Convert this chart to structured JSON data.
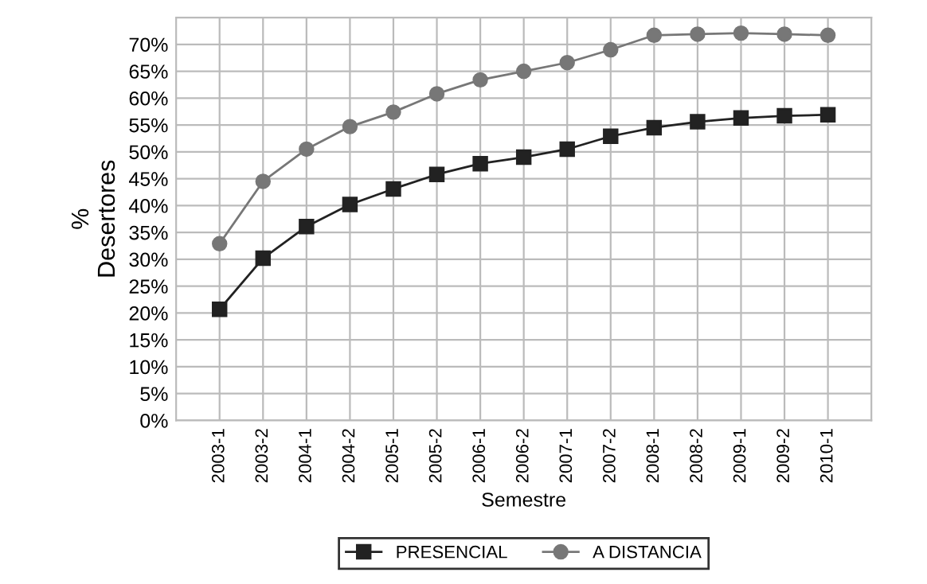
{
  "chart_data": {
    "type": "line",
    "xlabel": "Semestre",
    "ylabel": "%\nDesertores",
    "categories": [
      "2003-1",
      "2003-2",
      "2004-1",
      "2004-2",
      "2005-1",
      "2005-2",
      "2006-1",
      "2006-2",
      "2007-1",
      "2007-2",
      "2008-1",
      "2008-2",
      "2009-1",
      "2009-2",
      "2010-1"
    ],
    "series": [
      {
        "name": "PRESENCIAL",
        "color": "#222222",
        "marker": "square",
        "values": [
          20.7,
          30.2,
          36.1,
          40.2,
          43.1,
          45.8,
          47.8,
          49.0,
          50.5,
          52.9,
          54.5,
          55.6,
          56.3,
          56.7,
          56.9
        ]
      },
      {
        "name": "A DISTANCIA",
        "color": "#777777",
        "marker": "circle",
        "values": [
          32.9,
          44.5,
          50.5,
          54.7,
          57.4,
          60.8,
          63.4,
          65.0,
          66.6,
          69.0,
          71.7,
          71.9,
          72.1,
          71.9,
          71.7
        ]
      }
    ],
    "ylim": [
      0,
      75
    ],
    "yticks": [
      {
        "value": 0,
        "label": "0%"
      },
      {
        "value": 5,
        "label": "5%"
      },
      {
        "value": 10,
        "label": "10%"
      },
      {
        "value": 15,
        "label": "15%"
      },
      {
        "value": 20,
        "label": "20%"
      },
      {
        "value": 25,
        "label": "25%"
      },
      {
        "value": 30,
        "label": "30%"
      },
      {
        "value": 35,
        "label": "35%"
      },
      {
        "value": 40,
        "label": "40%"
      },
      {
        "value": 45,
        "label": "45%"
      },
      {
        "value": 50,
        "label": "50%"
      },
      {
        "value": 55,
        "label": "55%"
      },
      {
        "value": 60,
        "label": "60%"
      },
      {
        "value": 65,
        "label": "65%"
      },
      {
        "value": 70,
        "label": "70%"
      }
    ],
    "grid": true,
    "legend": "bottom",
    "line_style": "solid"
  }
}
